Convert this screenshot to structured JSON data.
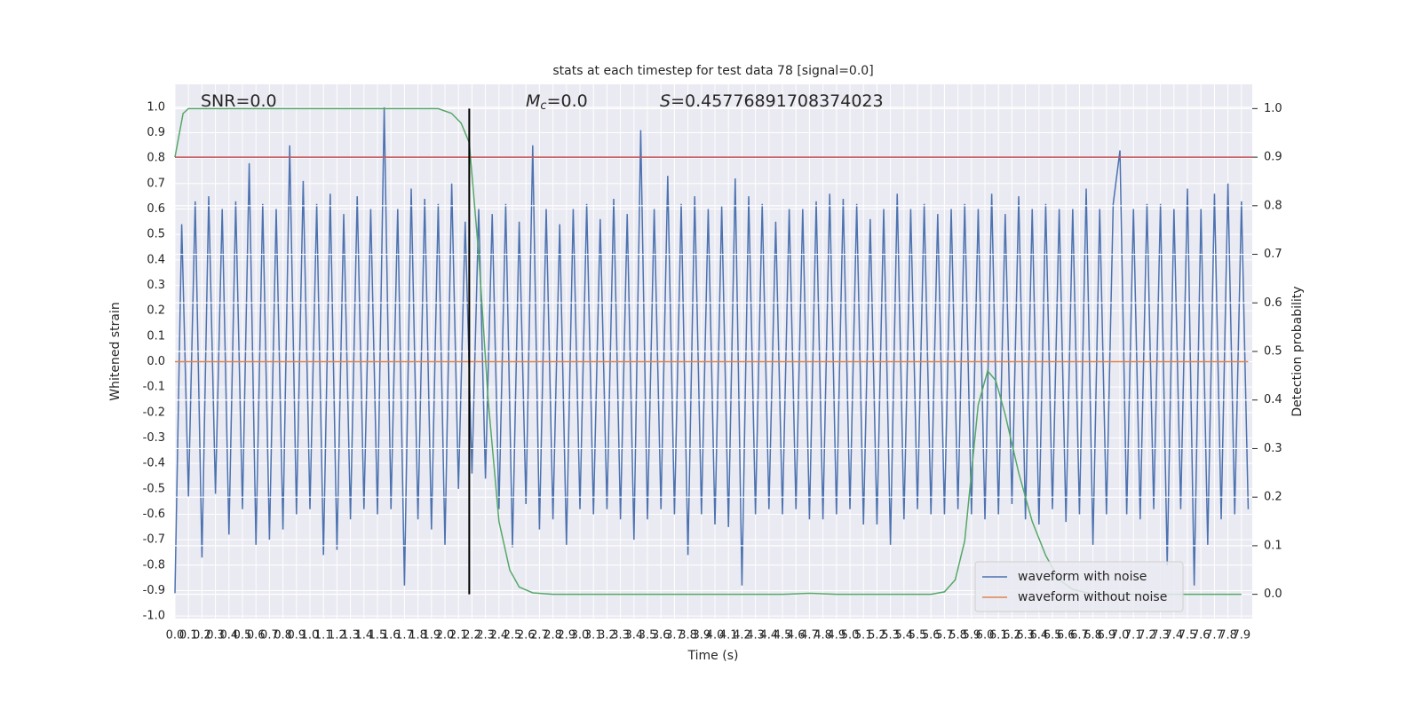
{
  "chart_data": {
    "type": "line",
    "title": "stats at each timestep for test data 78 [signal=0.0]",
    "x_label": "Time (s)",
    "y_label": "Whitened strain",
    "y2_label": "Detection probability",
    "annotations": [
      {
        "text": "SNR=0.0"
      },
      {
        "symbol": "M",
        "subscript": "c",
        "text": "=0.0"
      },
      {
        "symbol": "S",
        "text": "=0.45776891708374023"
      }
    ],
    "xlim": [
      0,
      7.98
    ],
    "ylim": [
      -1.01,
      1.09
    ],
    "y2lim": [
      -0.05,
      1.05
    ],
    "grid": true,
    "legend": "lower right",
    "xticks": [
      {
        "value": 0,
        "label": "0.0"
      },
      0.1,
      0.2,
      0.3,
      0.4,
      0.5,
      0.6,
      0.7,
      0.8,
      0.9,
      {
        "value": 1,
        "label": "1.0"
      },
      1.1,
      1.2,
      1.3,
      1.4,
      1.5,
      1.6,
      1.7,
      1.8,
      1.9,
      {
        "value": 2,
        "label": "2.0"
      },
      2.1,
      2.2,
      2.3,
      2.4,
      2.5,
      2.6,
      2.7,
      2.8,
      2.9,
      {
        "value": 3,
        "label": "3.0"
      },
      3.1,
      3.2,
      3.3,
      3.4,
      3.5,
      3.6,
      3.7,
      3.8,
      3.9,
      {
        "value": 4,
        "label": "4.0"
      },
      4.1,
      4.2,
      4.3,
      4.4,
      4.5,
      4.6,
      4.7,
      4.8,
      4.9,
      {
        "value": 5,
        "label": "5.0"
      },
      5.1,
      5.2,
      5.3,
      5.4,
      5.5,
      5.6,
      5.7,
      5.8,
      5.9,
      {
        "value": 6,
        "label": "6.0"
      },
      6.1,
      6.2,
      6.3,
      6.4,
      6.5,
      6.6,
      6.7,
      6.8,
      6.9,
      {
        "value": 7,
        "label": "7.0"
      },
      7.1,
      7.2,
      7.3,
      7.4,
      7.5,
      7.6,
      7.7,
      7.8,
      7.9
    ],
    "yticks": [
      {
        "value": -1,
        "label": "-1.0"
      },
      -0.9,
      -0.8,
      -0.7,
      -0.6,
      -0.5,
      -0.4,
      -0.3,
      -0.2,
      -0.1,
      {
        "value": 0,
        "label": "0.0"
      },
      0.1,
      0.2,
      0.3,
      0.4,
      0.5,
      0.6,
      0.7,
      0.8,
      0.9,
      {
        "value": 1,
        "label": "1.0"
      }
    ],
    "y2ticks": [
      {
        "value": 0,
        "label": "0.0"
      },
      0.1,
      0.2,
      0.3,
      0.4,
      0.5,
      0.6,
      0.7,
      0.8,
      0.9,
      {
        "value": 1,
        "label": "1.0"
      }
    ],
    "series": [
      {
        "name": "waveform with noise",
        "color": "#4c72b0",
        "x": [
          0,
          0.05,
          0.1,
          0.15,
          0.2,
          0.25,
          0.3,
          0.35,
          0.4,
          0.45,
          0.5,
          0.55,
          0.6,
          0.65,
          0.7,
          0.75,
          0.8,
          0.85,
          0.9,
          0.95,
          1,
          1.05,
          1.1,
          1.15,
          1.2,
          1.25,
          1.3,
          1.35,
          1.4,
          1.45,
          1.5,
          1.55,
          1.6,
          1.65,
          1.7,
          1.75,
          1.8,
          1.85,
          1.9,
          1.95,
          2,
          2.05,
          2.1,
          2.15,
          2.2,
          2.25,
          2.3,
          2.35,
          2.4,
          2.45,
          2.5,
          2.55,
          2.6,
          2.65,
          2.7,
          2.75,
          2.8,
          2.85,
          2.9,
          2.95,
          3,
          3.05,
          3.1,
          3.15,
          3.2,
          3.25,
          3.3,
          3.35,
          3.4,
          3.45,
          3.5,
          3.55,
          3.6,
          3.65,
          3.7,
          3.75,
          3.8,
          3.85,
          3.9,
          3.95,
          4,
          4.05,
          4.1,
          4.15,
          4.2,
          4.25,
          4.3,
          4.35,
          4.4,
          4.45,
          4.5,
          4.55,
          4.6,
          4.65,
          4.7,
          4.75,
          4.8,
          4.85,
          4.9,
          4.95,
          5,
          5.05,
          5.1,
          5.15,
          5.2,
          5.25,
          5.3,
          5.35,
          5.4,
          5.45,
          5.5,
          5.55,
          5.6,
          5.65,
          5.7,
          5.75,
          5.8,
          5.85,
          5.9,
          5.95,
          6,
          6.05,
          6.1,
          6.15,
          6.2,
          6.25,
          6.3,
          6.35,
          6.4,
          6.45,
          6.5,
          6.55,
          6.6,
          6.65,
          6.7,
          6.75,
          6.8,
          6.85,
          6.9,
          6.95,
          7,
          7.05,
          7.1,
          7.15,
          7.2,
          7.25,
          7.3,
          7.35,
          7.4,
          7.45,
          7.5,
          7.55,
          7.6,
          7.65,
          7.7,
          7.75,
          7.8,
          7.85,
          7.9,
          7.95
        ],
        "values": [
          -0.91,
          0.54,
          -0.53,
          0.63,
          -0.77,
          0.65,
          -0.52,
          0.6,
          -0.68,
          0.63,
          -0.58,
          0.78,
          -0.72,
          0.62,
          -0.7,
          0.6,
          -0.66,
          0.85,
          -0.6,
          0.71,
          -0.58,
          0.62,
          -0.76,
          0.66,
          -0.74,
          0.58,
          -0.62,
          0.65,
          -0.58,
          0.6,
          -0.6,
          1.0,
          -0.58,
          0.6,
          -0.88,
          0.68,
          -0.62,
          0.64,
          -0.66,
          0.62,
          -0.72,
          0.7,
          -0.5,
          0.55,
          -0.44,
          0.6,
          -0.46,
          0.58,
          -0.58,
          0.62,
          -0.73,
          0.55,
          -0.56,
          0.85,
          -0.66,
          0.6,
          -0.62,
          0.54,
          -0.72,
          0.6,
          -0.58,
          0.62,
          -0.6,
          0.56,
          -0.58,
          0.64,
          -0.62,
          0.58,
          -0.7,
          0.91,
          -0.62,
          0.6,
          -0.58,
          0.73,
          -0.6,
          0.62,
          -0.76,
          0.65,
          -0.6,
          0.6,
          -0.64,
          0.61,
          -0.65,
          0.72,
          -0.88,
          0.65,
          -0.6,
          0.62,
          -0.58,
          0.55,
          -0.6,
          0.6,
          -0.58,
          0.6,
          -0.62,
          0.63,
          -0.62,
          0.66,
          -0.6,
          0.64,
          -0.58,
          0.62,
          -0.64,
          0.56,
          -0.64,
          0.6,
          -0.72,
          0.66,
          -0.62,
          0.6,
          -0.58,
          0.62,
          -0.6,
          0.58,
          -0.6,
          0.6,
          -0.58,
          0.62,
          -0.6,
          0.6,
          -0.62,
          0.66,
          -0.6,
          0.58,
          -0.56,
          0.65,
          -0.62,
          0.6,
          -0.64,
          0.62,
          -0.58,
          0.6,
          -0.63,
          0.6,
          -0.6,
          0.68,
          -0.72,
          0.6,
          -0.6,
          0.62,
          0.83,
          -0.6,
          0.6,
          -0.62,
          0.62,
          -0.58,
          0.62,
          -0.8,
          0.6,
          -0.58,
          0.68,
          -0.88,
          0.6,
          -0.72,
          0.66,
          -0.62,
          0.7,
          -0.6,
          0.63,
          -0.58
        ]
      },
      {
        "name": "waveform without noise",
        "color": "#dd8452",
        "x": [
          0,
          7.95
        ],
        "values": [
          0,
          0
        ]
      },
      {
        "color": "#55a868",
        "axis": "y2",
        "x": [
          0,
          0.06,
          0.1,
          0.3,
          0.6,
          1.0,
          1.5,
          1.95,
          2.05,
          2.12,
          2.18,
          2.25,
          2.32,
          2.4,
          2.48,
          2.55,
          2.65,
          2.8,
          3.5,
          4.5,
          4.7,
          4.9,
          5.6,
          5.7,
          5.78,
          5.85,
          5.9,
          5.95,
          6.02,
          6.08,
          6.15,
          6.25,
          6.35,
          6.45,
          6.55,
          6.65,
          6.8,
          7.9
        ],
        "values": [
          0.9,
          0.99,
          1.0,
          1.0,
          1.0,
          1.0,
          1.0,
          1.0,
          0.99,
          0.97,
          0.93,
          0.7,
          0.4,
          0.15,
          0.05,
          0.015,
          0.003,
          0.0,
          0.0,
          0.0,
          0.002,
          0.0,
          0.0,
          0.005,
          0.03,
          0.11,
          0.25,
          0.39,
          0.46,
          0.44,
          0.37,
          0.25,
          0.15,
          0.08,
          0.03,
          0.01,
          0.0,
          0.0
        ]
      }
    ],
    "hlines": [
      {
        "value": 0.9,
        "axis": "y2",
        "color": "#c44e52"
      }
    ],
    "vlines": [
      {
        "x": 2.18,
        "ymin": 0,
        "ymax": 1,
        "axis": "y2",
        "color": "#000000"
      }
    ]
  }
}
